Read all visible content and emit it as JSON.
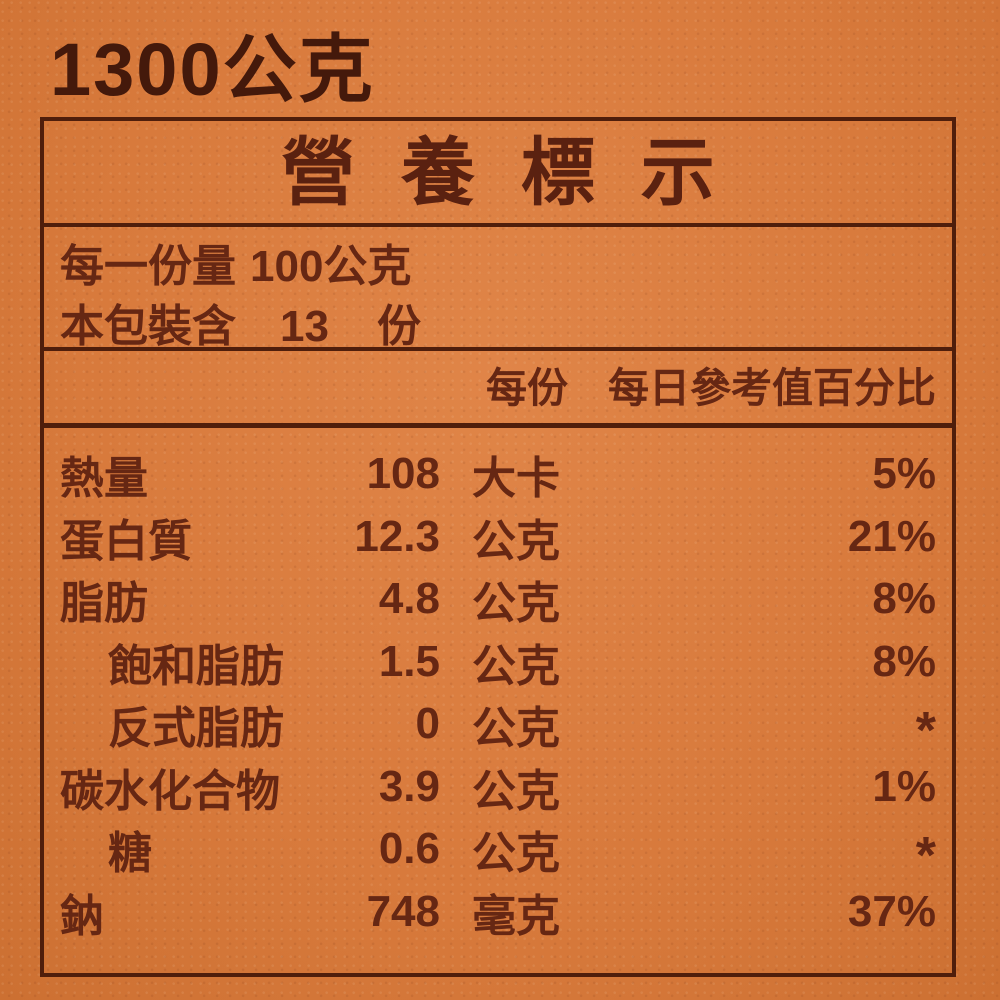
{
  "label": {
    "weight_text": "1300公克",
    "title": "營養標示",
    "serving": {
      "size_label": "每一份量",
      "size_value": "100公克",
      "package_label": "本包裝含",
      "package_count": "13",
      "package_unit": "份"
    },
    "columns": {
      "per_serving": "每份",
      "daily_value": "每日參考值百分比"
    },
    "rows": [
      {
        "name": "熱量",
        "amount": "108",
        "unit": "大卡",
        "dv": "5%",
        "indent": false
      },
      {
        "name": "蛋白質",
        "amount": "12.3",
        "unit": "公克",
        "dv": "21%",
        "indent": false
      },
      {
        "name": "脂肪",
        "amount": "4.8",
        "unit": "公克",
        "dv": "8%",
        "indent": false
      },
      {
        "name": "飽和脂肪",
        "amount": "1.5",
        "unit": "公克",
        "dv": "8%",
        "indent": true
      },
      {
        "name": "反式脂肪",
        "amount": "0",
        "unit": "公克",
        "dv": "*",
        "indent": true
      },
      {
        "name": "碳水化合物",
        "amount": "3.9",
        "unit": "公克",
        "dv": "1%",
        "indent": false
      },
      {
        "name": "糖",
        "amount": "0.6",
        "unit": "公克",
        "dv": "*",
        "indent": true
      },
      {
        "name": "鈉",
        "amount": "748",
        "unit": "毫克",
        "dv": "37%",
        "indent": false
      }
    ],
    "colors": {
      "background": "#d87a3c",
      "text": "#662713",
      "border": "#4f1e0b",
      "weight_text": "#44190b",
      "title_text": "#5a2110"
    }
  }
}
